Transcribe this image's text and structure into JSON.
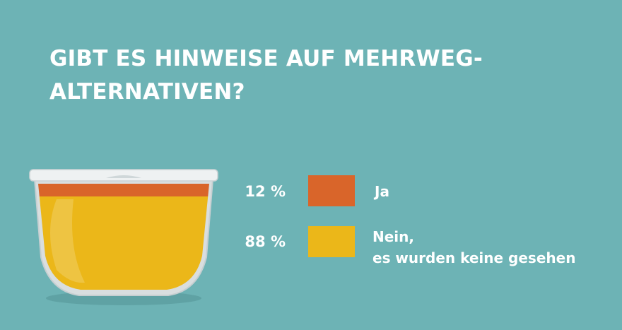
{
  "title_line1": "GIBT ES HINWEISE AUF MEHRWEG-",
  "title_line2": "ALTERNATIVEN?",
  "chart_data": {
    "type": "bar",
    "title": "GIBT ES HINWEISE AUF MEHRWEG-ALTERNATIVEN?",
    "unit": "%",
    "categories": [
      "Ja",
      "Nein, es wurden keine gesehen"
    ],
    "values": [
      12,
      88
    ],
    "value_labels": [
      "12 %",
      "88 %"
    ],
    "legend": [
      {
        "label_lines": [
          "Ja"
        ],
        "color": "#d9652a"
      },
      {
        "label_lines": [
          "Nein,",
          "es wurden keine gesehen"
        ],
        "color": "#ebb719"
      }
    ]
  },
  "colors": {
    "background": "#6db3b5",
    "ja": "#d9652a",
    "nein": "#ebb719"
  }
}
